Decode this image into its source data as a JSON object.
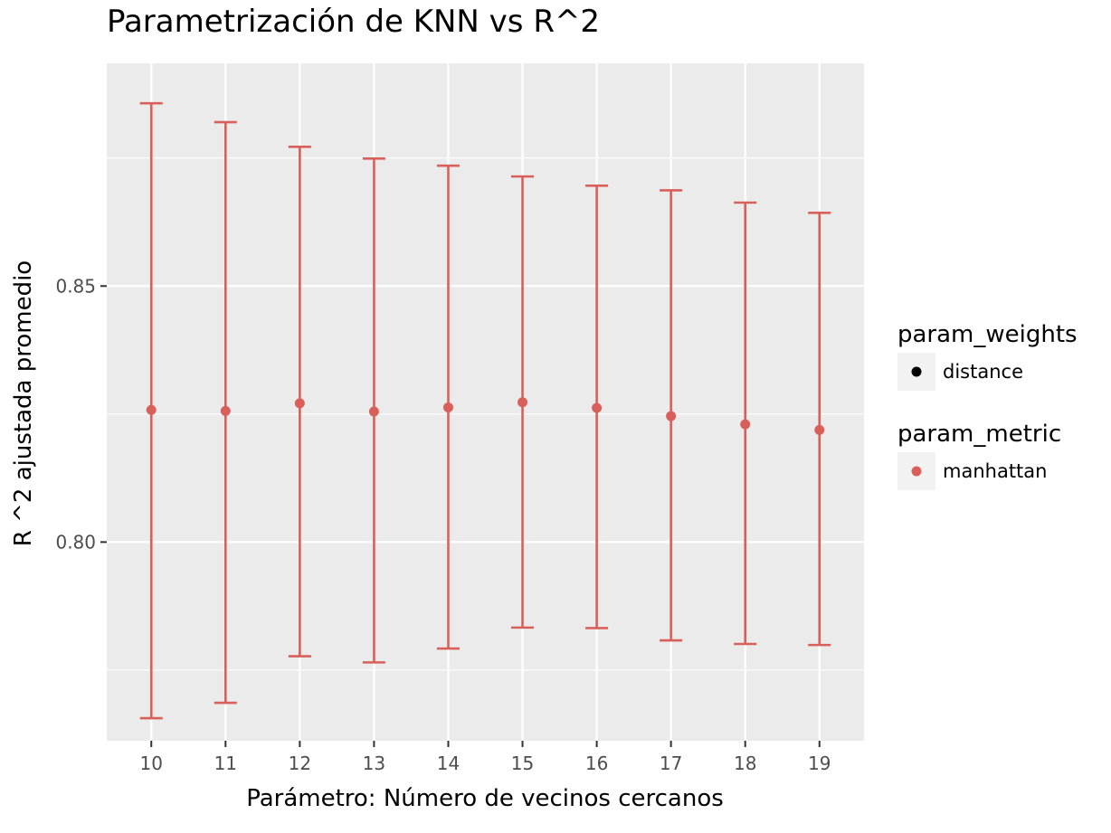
{
  "chart_data": {
    "type": "errorbar",
    "title": "Parametrización de KNN vs R^2",
    "xlabel": "Parámetro: Número de vecinos cercanos",
    "ylabel": "R ^2 ajustada promedio",
    "x": [
      10,
      11,
      12,
      13,
      14,
      15,
      16,
      17,
      18,
      19
    ],
    "x_tick_labels": [
      "10",
      "11",
      "12",
      "13",
      "14",
      "15",
      "16",
      "17",
      "18",
      "19"
    ],
    "y_ticks": [
      0.8,
      0.85
    ],
    "y_tick_labels": [
      "0.80",
      "0.85"
    ],
    "ylim": [
      0.7612,
      0.8935
    ],
    "grid": true,
    "series": [
      {
        "name": "manhattan",
        "mean": [
          0.8258,
          0.8256,
          0.8271,
          0.8255,
          0.8263,
          0.8273,
          0.8262,
          0.8246,
          0.823,
          0.8219
        ],
        "lower": [
          0.7656,
          0.7686,
          0.7777,
          0.7765,
          0.7792,
          0.7833,
          0.7832,
          0.7808,
          0.7801,
          0.7799
        ],
        "upper": [
          0.8857,
          0.882,
          0.8772,
          0.8749,
          0.8735,
          0.8714,
          0.8696,
          0.8687,
          0.8663,
          0.8643
        ],
        "color": "#d9605a"
      }
    ],
    "legend": {
      "placement": "right",
      "groups": [
        {
          "title": "param_weights",
          "items": [
            {
              "label": "distance",
              "color": "#000000"
            }
          ]
        },
        {
          "title": "param_metric",
          "items": [
            {
              "label": "manhattan",
              "color": "#d9605a"
            }
          ]
        }
      ]
    },
    "colors": {
      "panel": "#ebebeb",
      "grid": "#ffffff",
      "errorbar": "#d9605a"
    }
  }
}
